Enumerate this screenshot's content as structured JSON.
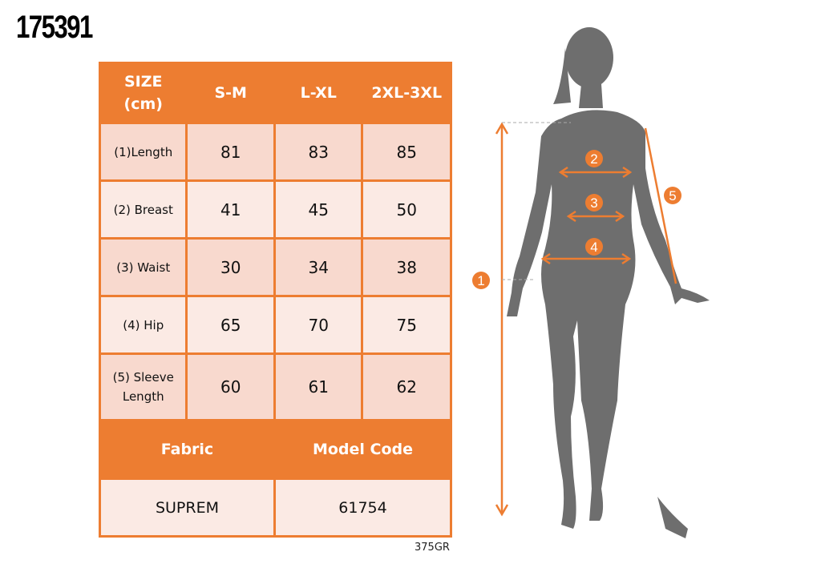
{
  "product_code": "175391",
  "table": {
    "header": [
      "SIZE\n(cm)",
      "S-M",
      "L-XL",
      "2XL-3XL"
    ],
    "rows": [
      {
        "label": "(1)Length",
        "values": [
          "81",
          "83",
          "85"
        ]
      },
      {
        "label": "(2) Breast",
        "values": [
          "41",
          "45",
          "50"
        ]
      },
      {
        "label": "(3) Waist",
        "values": [
          "30",
          "34",
          "38"
        ]
      },
      {
        "label": "(4) Hip",
        "values": [
          "65",
          "70",
          "75"
        ]
      },
      {
        "label": "(5) Sleeve Length",
        "values": [
          "60",
          "61",
          "62"
        ]
      }
    ],
    "fabric_label": "Fabric",
    "model_code_label": "Model Code",
    "fabric": "SUPREM",
    "model_code": "61754"
  },
  "footer_code": "375GR",
  "figure": {
    "markers": [
      "1",
      "2",
      "3",
      "4",
      "5"
    ]
  },
  "colors": {
    "accent": "#ED7D31",
    "row_dark": "#F8D9CE",
    "row_light": "#FBEAE4",
    "silhouette": "#6E6E6E"
  }
}
